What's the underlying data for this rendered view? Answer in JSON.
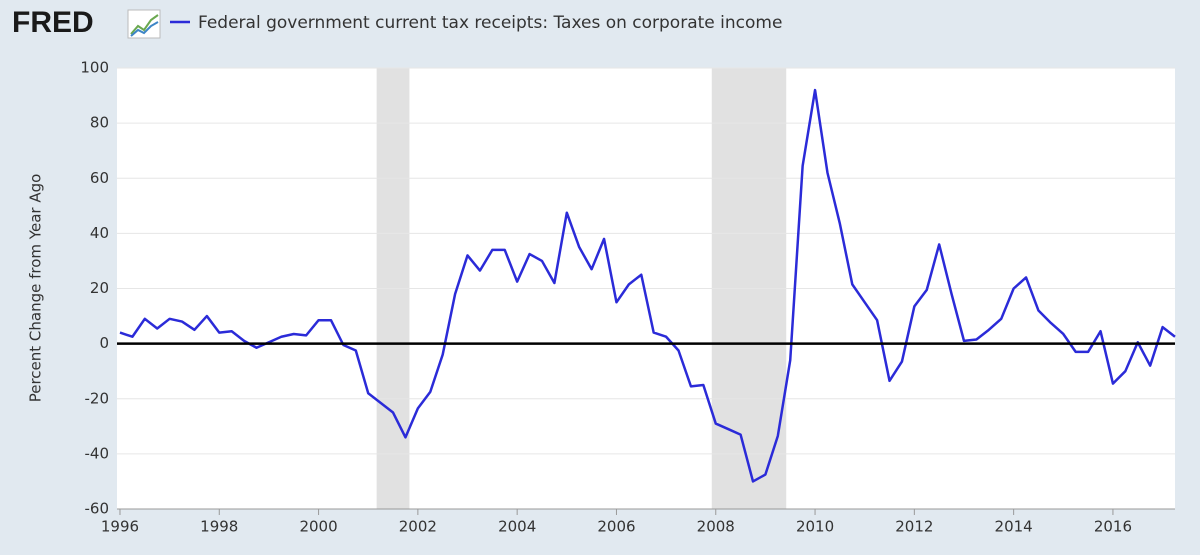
{
  "chart_data": {
    "type": "line",
    "logo": "FRED",
    "series": [
      {
        "name": "Federal government current tax receipts: Taxes on corporate income",
        "color": "#2b2bd8",
        "values": [
          4,
          2.5,
          9,
          5.5,
          9,
          8,
          5,
          10,
          4,
          4.5,
          1,
          -1.5,
          0.5,
          2.5,
          3.5,
          3,
          8.5,
          8.5,
          -0.5,
          -2.5,
          -18,
          -21.5,
          -25,
          -34,
          -23.5,
          -17.5,
          -4,
          18,
          32,
          26.5,
          34,
          34,
          22.5,
          32.5,
          30,
          22,
          47.5,
          35,
          27,
          38,
          15,
          21.5,
          25,
          4,
          2.5,
          -2.5,
          -15.5,
          -15,
          -29,
          -31,
          -33,
          -50,
          -47.5,
          -33.5,
          -6,
          64.5,
          92,
          62,
          43.5,
          21.5,
          15,
          8.5,
          -13.5,
          -6.5,
          13.5,
          19.5,
          36,
          18,
          1,
          1.5,
          5,
          9,
          20,
          24,
          12,
          7.5,
          3.5,
          -3,
          -3,
          4.5,
          -14.5,
          -10,
          0.5,
          -8,
          6,
          2.5
        ]
      }
    ],
    "x": [
      1996,
      1996.25,
      1996.5,
      1996.75,
      1997,
      1997.25,
      1997.5,
      1997.75,
      1998,
      1998.25,
      1998.5,
      1998.75,
      1999,
      1999.25,
      1999.5,
      1999.75,
      2000,
      2000.25,
      2000.5,
      2000.75,
      2001,
      2001.25,
      2001.5,
      2001.75,
      2002,
      2002.25,
      2002.5,
      2002.75,
      2003,
      2003.25,
      2003.5,
      2003.75,
      2004,
      2004.25,
      2004.5,
      2004.75,
      2005,
      2005.25,
      2005.5,
      2005.75,
      2006,
      2006.25,
      2006.5,
      2006.75,
      2007,
      2007.25,
      2007.5,
      2007.75,
      2008,
      2008.25,
      2008.5,
      2008.75,
      2009,
      2009.25,
      2009.5,
      2009.75,
      2010,
      2010.25,
      2010.5,
      2010.75,
      2011,
      2011.25,
      2011.5,
      2011.75,
      2012,
      2012.25,
      2012.5,
      2012.75,
      2013,
      2013.25,
      2013.5,
      2013.75,
      2014,
      2014.25,
      2014.5,
      2014.75,
      2015,
      2015.25,
      2015.5,
      2015.75,
      2016,
      2016.25,
      2016.5,
      2016.75,
      2017,
      2017.25
    ],
    "recessions": [
      [
        2001.17,
        2001.83
      ],
      [
        2007.92,
        2009.42
      ]
    ],
    "recession_color": "#e1e1e1",
    "y_label": "Percent Change from Year Ago",
    "xlim": [
      1995.94,
      2017.25
    ],
    "ylim": [
      -60,
      100
    ],
    "xticks": [
      1996,
      1998,
      2000,
      2002,
      2004,
      2006,
      2008,
      2010,
      2012,
      2014,
      2016
    ],
    "yticks": [
      -60,
      -40,
      -20,
      0,
      20,
      40,
      60,
      80,
      100
    ],
    "grid": true,
    "zero_line": true
  }
}
